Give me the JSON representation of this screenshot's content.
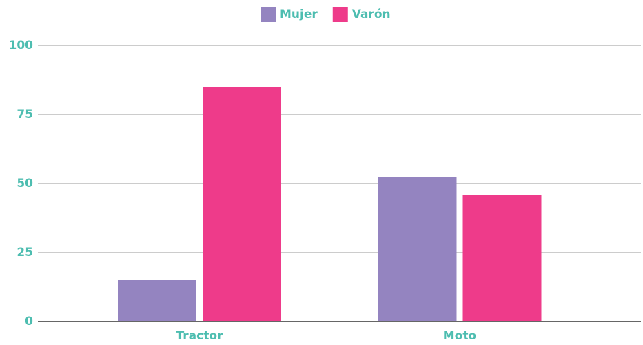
{
  "chart_data": {
    "type": "bar",
    "categories": [
      "Tractor",
      "Moto"
    ],
    "series": [
      {
        "name": "Mujer",
        "color": "#9484c0",
        "values": [
          15,
          52.5
        ]
      },
      {
        "name": "Varón",
        "color": "#ee3b8a",
        "values": [
          85,
          46
        ]
      }
    ],
    "ylim": [
      0,
      100
    ],
    "yticks": [
      0,
      25,
      50,
      75,
      100
    ],
    "grid": true,
    "legend": "top"
  }
}
